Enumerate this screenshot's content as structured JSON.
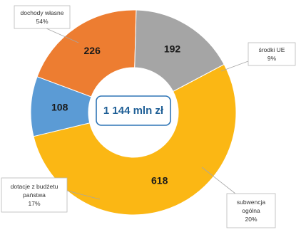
{
  "chart_data": {
    "type": "pie",
    "variant": "donut",
    "total_label": "1 144 mln zł",
    "slices": [
      {
        "name": "dochody własne",
        "value": 618,
        "value_label": "618",
        "percent_label": "54%",
        "color": "#fbb714",
        "label_lines": [
          "dochody własne",
          "54%"
        ]
      },
      {
        "name": "środki UE",
        "value": 108,
        "value_label": "108",
        "percent_label": "9%",
        "color": "#5b9bd5",
        "label_lines": [
          "środki UE",
          "9%"
        ]
      },
      {
        "name": "subwencja ogólna",
        "value": 226,
        "value_label": "226",
        "percent_label": "20%",
        "color": "#ed7d31",
        "label_lines": [
          "subwencja",
          "ogólna",
          "20%"
        ]
      },
      {
        "name": "dotacje z budżetu państwa",
        "value": 192,
        "value_label": "192",
        "percent_label": "17%",
        "color": "#a5a5a5",
        "label_lines": [
          "dotacje z budżetu",
          "państwa",
          "17%"
        ]
      }
    ]
  }
}
